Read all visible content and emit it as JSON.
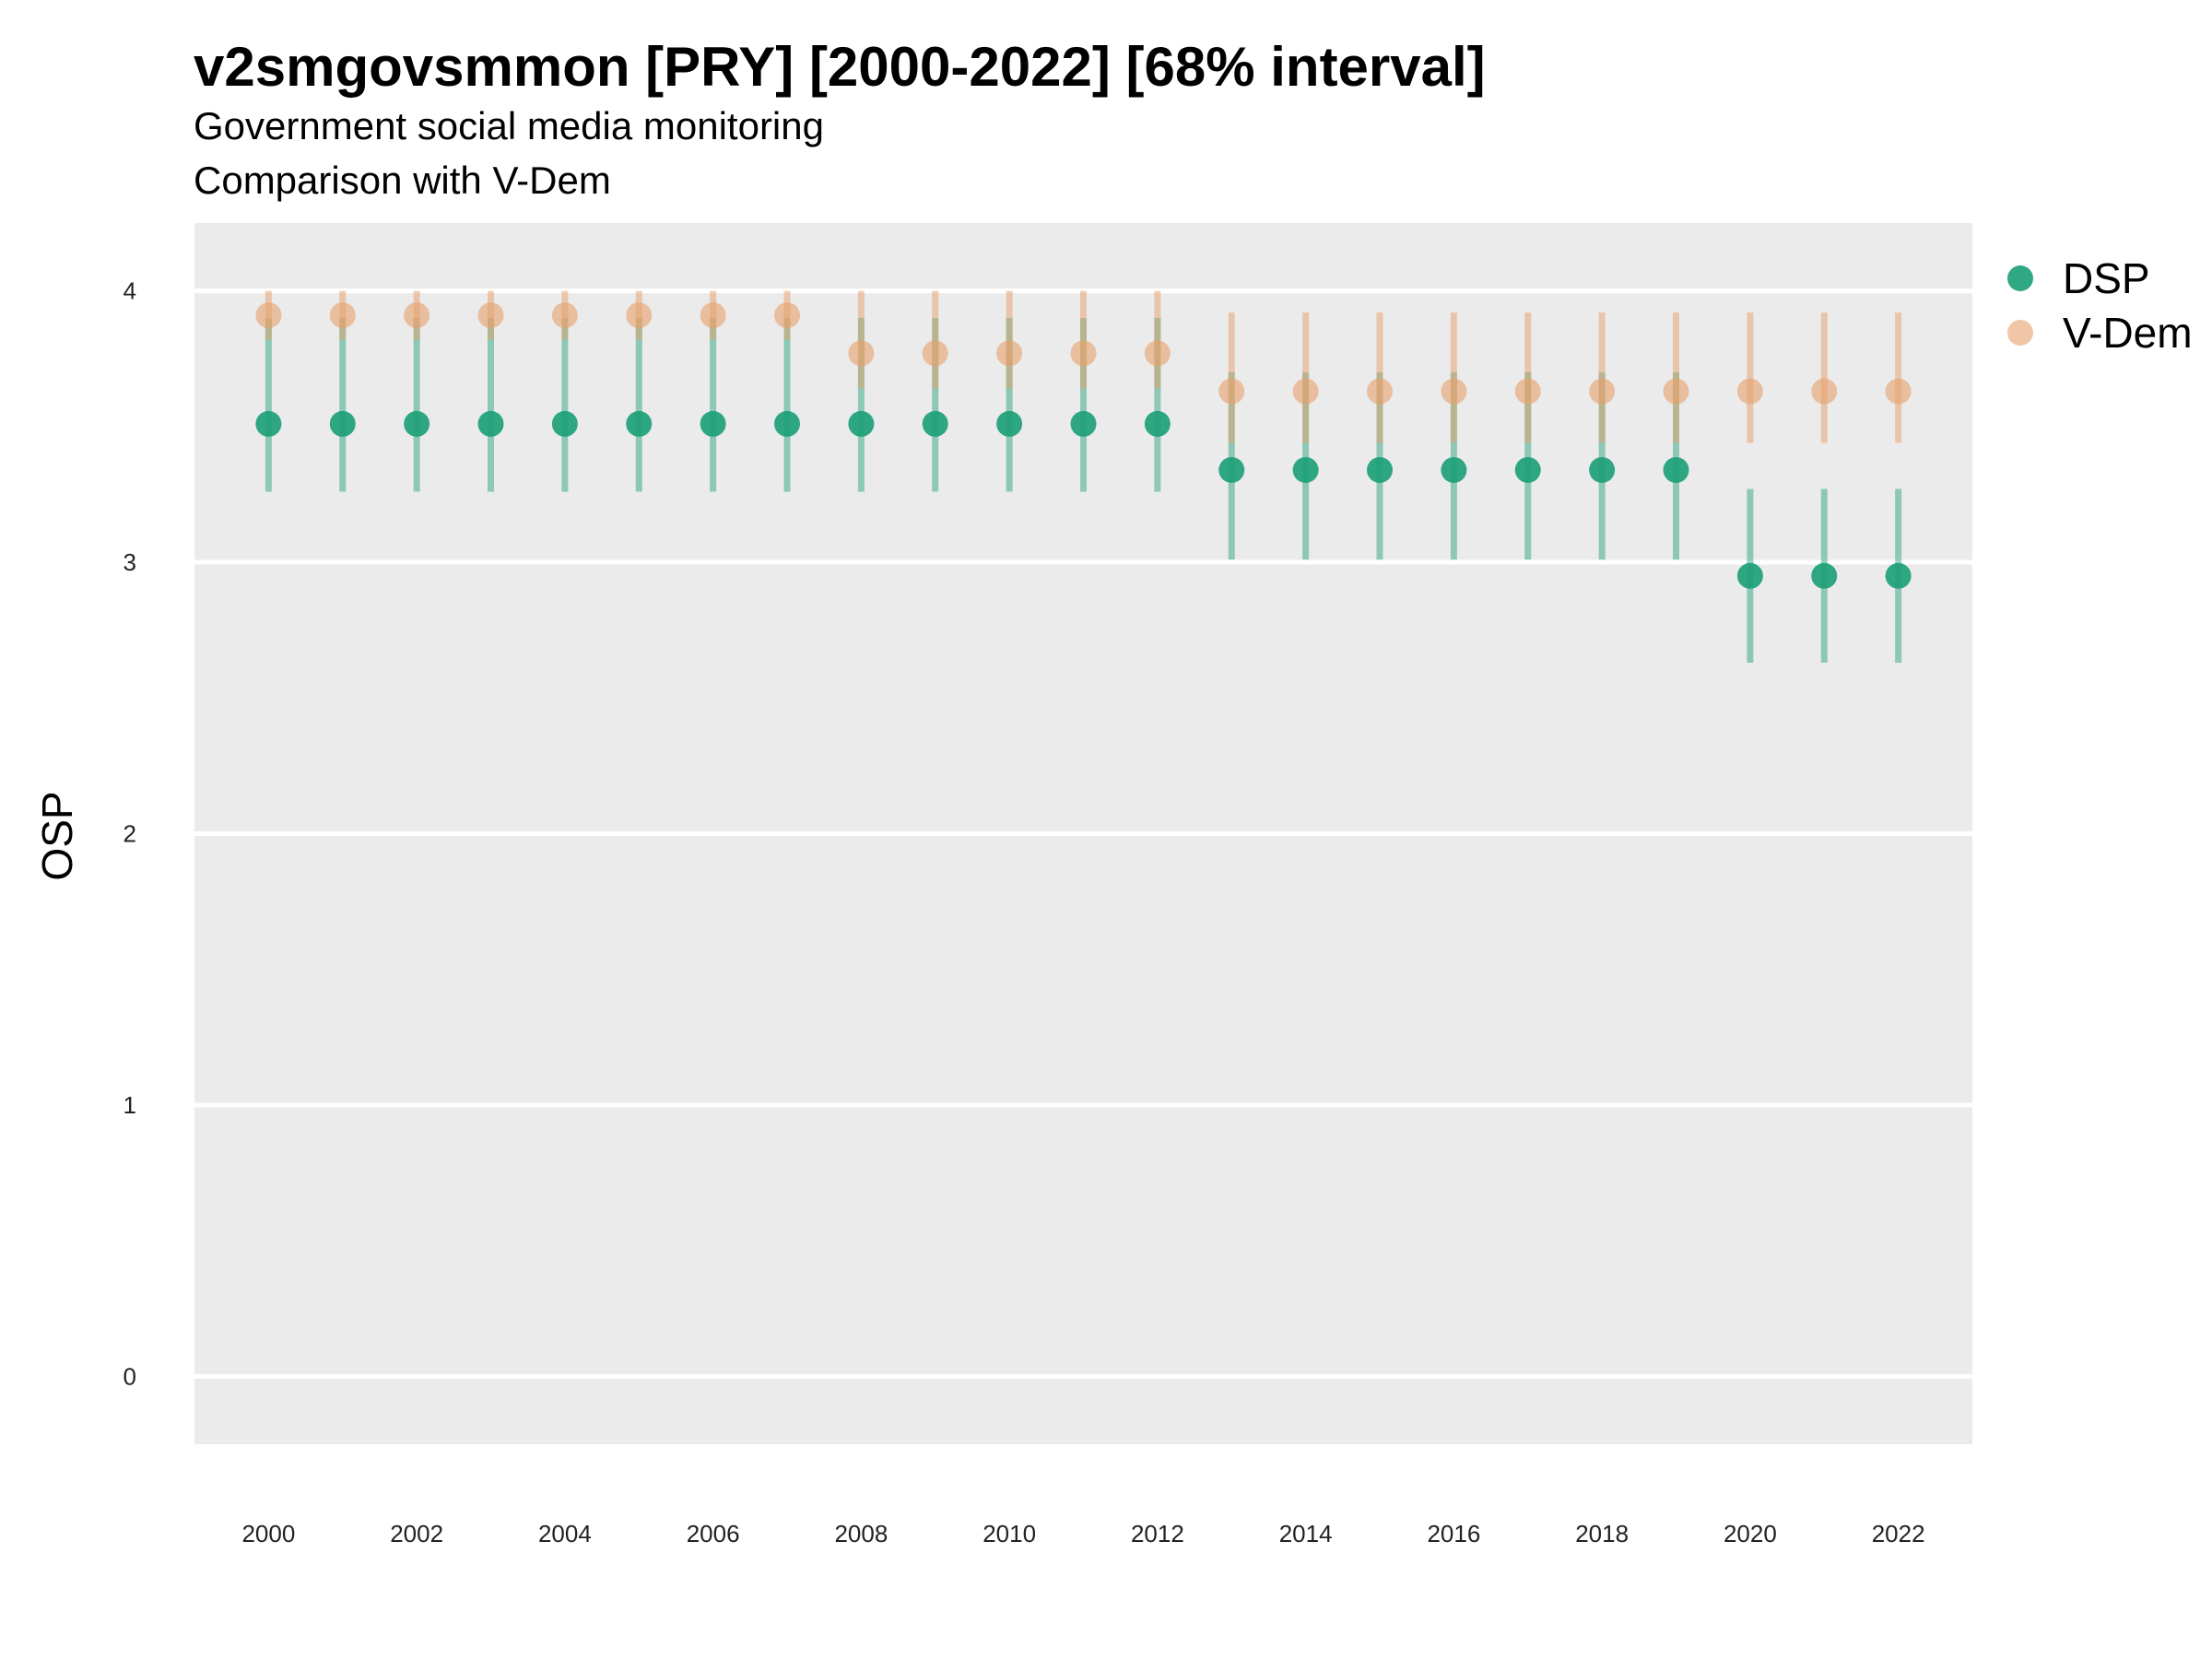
{
  "chart_data": {
    "type": "scatter",
    "title": "v2smgovsmmon [PRY] [2000-2022] [68% interval]",
    "subtitle_lines": [
      "Government social media monitoring",
      "Comparison with V-Dem"
    ],
    "xlabel": "",
    "ylabel": "OSP",
    "x": [
      2000,
      2001,
      2002,
      2003,
      2004,
      2005,
      2006,
      2007,
      2008,
      2009,
      2010,
      2011,
      2012,
      2013,
      2014,
      2015,
      2016,
      2017,
      2018,
      2019,
      2020,
      2021,
      2022
    ],
    "xticks": [
      "2000",
      "2002",
      "2004",
      "2006",
      "2008",
      "2010",
      "2012",
      "2014",
      "2016",
      "2018",
      "2020",
      "2022"
    ],
    "yticks": [
      "0",
      "1",
      "2",
      "3",
      "4"
    ],
    "xlim": [
      1999.0,
      2023.0
    ],
    "ylim": [
      -0.25,
      4.25
    ],
    "grid": true,
    "legend_position": "top-right",
    "series": [
      {
        "name": "DSP",
        "color": "#1b9e77",
        "values": [
          3.51,
          3.51,
          3.51,
          3.51,
          3.51,
          3.51,
          3.51,
          3.51,
          3.51,
          3.51,
          3.51,
          3.51,
          3.51,
          3.34,
          3.34,
          3.34,
          3.34,
          3.34,
          3.34,
          3.34,
          2.95,
          2.95,
          2.95
        ],
        "lower": [
          3.26,
          3.26,
          3.26,
          3.26,
          3.26,
          3.26,
          3.26,
          3.26,
          3.26,
          3.26,
          3.26,
          3.26,
          3.26,
          3.01,
          3.01,
          3.01,
          3.01,
          3.01,
          3.01,
          3.01,
          2.63,
          2.63,
          2.63
        ],
        "upper": [
          3.9,
          3.9,
          3.9,
          3.9,
          3.9,
          3.9,
          3.9,
          3.9,
          3.9,
          3.9,
          3.9,
          3.9,
          3.9,
          3.7,
          3.7,
          3.7,
          3.7,
          3.7,
          3.7,
          3.7,
          3.27,
          3.27,
          3.27
        ]
      },
      {
        "name": "V-Dem",
        "color": "#e6a06a",
        "values": [
          3.91,
          3.91,
          3.91,
          3.91,
          3.91,
          3.91,
          3.91,
          3.91,
          3.77,
          3.77,
          3.77,
          3.77,
          3.77,
          3.63,
          3.63,
          3.63,
          3.63,
          3.63,
          3.63,
          3.63,
          3.63,
          3.63,
          3.63
        ],
        "lower": [
          3.82,
          3.82,
          3.82,
          3.82,
          3.82,
          3.82,
          3.82,
          3.82,
          3.64,
          3.64,
          3.64,
          3.64,
          3.64,
          3.44,
          3.44,
          3.44,
          3.44,
          3.44,
          3.44,
          3.44,
          3.44,
          3.44,
          3.44
        ],
        "upper": [
          4.0,
          4.0,
          4.0,
          4.0,
          4.0,
          4.0,
          4.0,
          4.0,
          4.0,
          4.0,
          4.0,
          4.0,
          4.0,
          3.92,
          3.92,
          3.92,
          3.92,
          3.92,
          3.92,
          3.92,
          3.92,
          3.92,
          3.92
        ]
      }
    ]
  }
}
